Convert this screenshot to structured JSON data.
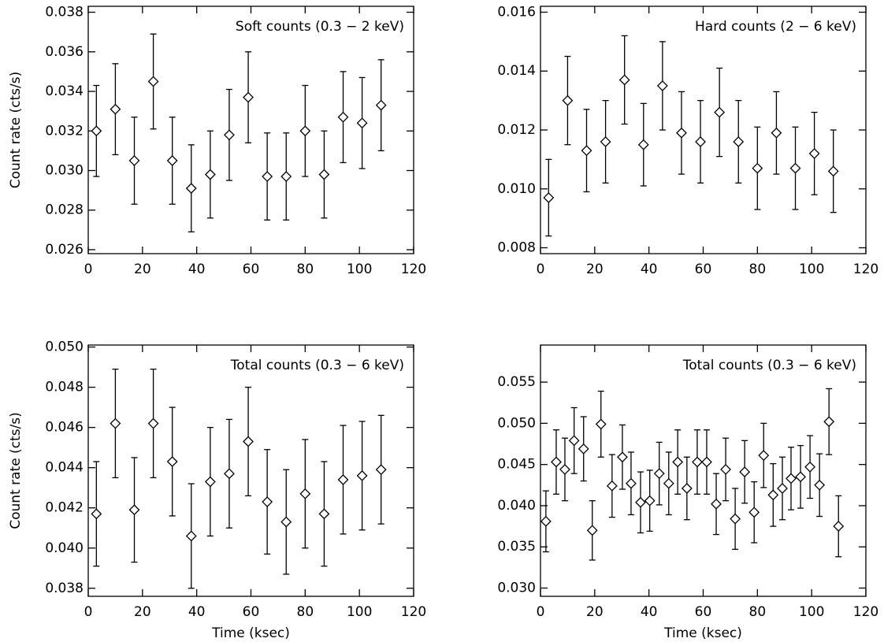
{
  "chart_data": [
    {
      "type": "scatter",
      "annotation": "Soft counts (0.3 − 2 keV)",
      "ylabel": "Count rate (cts/s)",
      "x": [
        3,
        10,
        17,
        24,
        31,
        38,
        45,
        52,
        59,
        66,
        73,
        80,
        87,
        94,
        101,
        108
      ],
      "values": [
        0.032,
        0.0331,
        0.0305,
        0.0345,
        0.0305,
        0.0291,
        0.0298,
        0.0318,
        0.0337,
        0.0297,
        0.0297,
        0.032,
        0.0298,
        0.0327,
        0.0324,
        0.0333
      ],
      "errors": [
        0.0023,
        0.0023,
        0.0022,
        0.0024,
        0.0022,
        0.0022,
        0.0022,
        0.0023,
        0.0023,
        0.0022,
        0.0022,
        0.0023,
        0.0022,
        0.0023,
        0.0023,
        0.0023
      ],
      "xlim": [
        0,
        120
      ],
      "xticks": [
        0,
        20,
        40,
        60,
        80,
        100,
        120
      ],
      "ylim": [
        0.0258,
        0.0383
      ],
      "yticks": [
        0.026,
        0.028,
        {
          "value": 0.03,
          "label": "0.030"
        },
        0.032,
        0.034,
        0.036,
        0.038
      ]
    },
    {
      "type": "scatter",
      "annotation": "Hard counts (2 − 6 keV)",
      "x": [
        3,
        10,
        17,
        24,
        31,
        38,
        45,
        52,
        59,
        66,
        73,
        80,
        87,
        94,
        101,
        108
      ],
      "values": [
        0.0097,
        0.013,
        0.0113,
        0.0116,
        0.0137,
        0.0115,
        0.0135,
        0.0119,
        0.0116,
        0.0126,
        0.0116,
        0.0107,
        0.0119,
        0.0107,
        0.0112,
        0.0106
      ],
      "errors": [
        0.0013,
        0.0015,
        0.0014,
        0.0014,
        0.0015,
        0.0014,
        0.0015,
        0.0014,
        0.0014,
        0.0015,
        0.0014,
        0.0014,
        0.0014,
        0.0014,
        0.0014,
        0.0014
      ],
      "xlim": [
        0,
        120
      ],
      "xticks": [
        0,
        20,
        40,
        60,
        80,
        100,
        120
      ],
      "ylim": [
        0.0078,
        0.0162
      ],
      "yticks": [
        0.008,
        {
          "value": 0.01,
          "label": "0.010"
        },
        0.012,
        0.014,
        0.016
      ]
    },
    {
      "type": "scatter",
      "annotation": "Total counts (0.3 − 6 keV)",
      "ylabel": "Count rate (cts/s)",
      "xlabel": "Time (ksec)",
      "x": [
        3,
        10,
        17,
        24,
        31,
        38,
        45,
        52,
        59,
        66,
        73,
        80,
        87,
        94,
        101,
        108
      ],
      "values": [
        0.0417,
        0.0462,
        0.0419,
        0.0462,
        0.0443,
        0.0406,
        0.0433,
        0.0437,
        0.0453,
        0.0423,
        0.0413,
        0.0427,
        0.0417,
        0.0434,
        0.0436,
        0.0439
      ],
      "errors": [
        0.0026,
        0.0027,
        0.0026,
        0.0027,
        0.0027,
        0.0026,
        0.0027,
        0.0027,
        0.0027,
        0.0026,
        0.0026,
        0.0027,
        0.0026,
        0.0027,
        0.0027,
        0.0027
      ],
      "xlim": [
        0,
        120
      ],
      "xticks": [
        0,
        20,
        40,
        60,
        80,
        100,
        120
      ],
      "ylim": [
        0.0376,
        0.0501
      ],
      "yticks": [
        0.038,
        {
          "value": 0.04,
          "label": "0.040"
        },
        0.042,
        0.044,
        0.046,
        0.048,
        {
          "value": 0.05,
          "label": "0.050"
        }
      ]
    },
    {
      "type": "scatter",
      "annotation": "Total counts (0.3 − 6 keV)",
      "xlabel": "Time (ksec)",
      "x": [
        2,
        5.8,
        9,
        12.4,
        15.9,
        19.1,
        22.3,
        26.4,
        30.2,
        33.4,
        36.9,
        40.3,
        43.8,
        47.3,
        50.6,
        54,
        57.8,
        61.3,
        64.8,
        68.3,
        71.8,
        75.3,
        78.8,
        82.3,
        85.8,
        89.2,
        92.4,
        95.9,
        99.4,
        102.9,
        106.4,
        109.9
      ],
      "values": [
        0.0381,
        0.0453,
        0.0444,
        0.0479,
        0.0469,
        0.037,
        0.0499,
        0.0424,
        0.0459,
        0.0427,
        0.0404,
        0.0406,
        0.0439,
        0.0427,
        0.0453,
        0.0421,
        0.0453,
        0.0453,
        0.0402,
        0.0444,
        0.0384,
        0.0441,
        0.0392,
        0.0461,
        0.0413,
        0.0421,
        0.0433,
        0.0435,
        0.0447,
        0.0425,
        0.0502,
        0.0375
      ],
      "errors": [
        0.0037,
        0.0039,
        0.0038,
        0.004,
        0.0039,
        0.0036,
        0.004,
        0.0038,
        0.0039,
        0.0038,
        0.0037,
        0.0037,
        0.0038,
        0.0038,
        0.0039,
        0.0038,
        0.0039,
        0.0039,
        0.0037,
        0.0038,
        0.0037,
        0.0038,
        0.0037,
        0.0039,
        0.0038,
        0.0038,
        0.0038,
        0.0038,
        0.0038,
        0.0038,
        0.004,
        0.0037
      ],
      "xlim": [
        0,
        120
      ],
      "xticks": [
        0,
        20,
        40,
        60,
        80,
        100,
        120
      ],
      "ylim": [
        0.029,
        0.0595
      ],
      "yticks": [
        {
          "value": 0.03,
          "label": "0.030"
        },
        0.035,
        {
          "value": 0.04,
          "label": "0.040"
        },
        0.045,
        {
          "value": 0.05,
          "label": "0.050"
        },
        0.055
      ]
    }
  ]
}
